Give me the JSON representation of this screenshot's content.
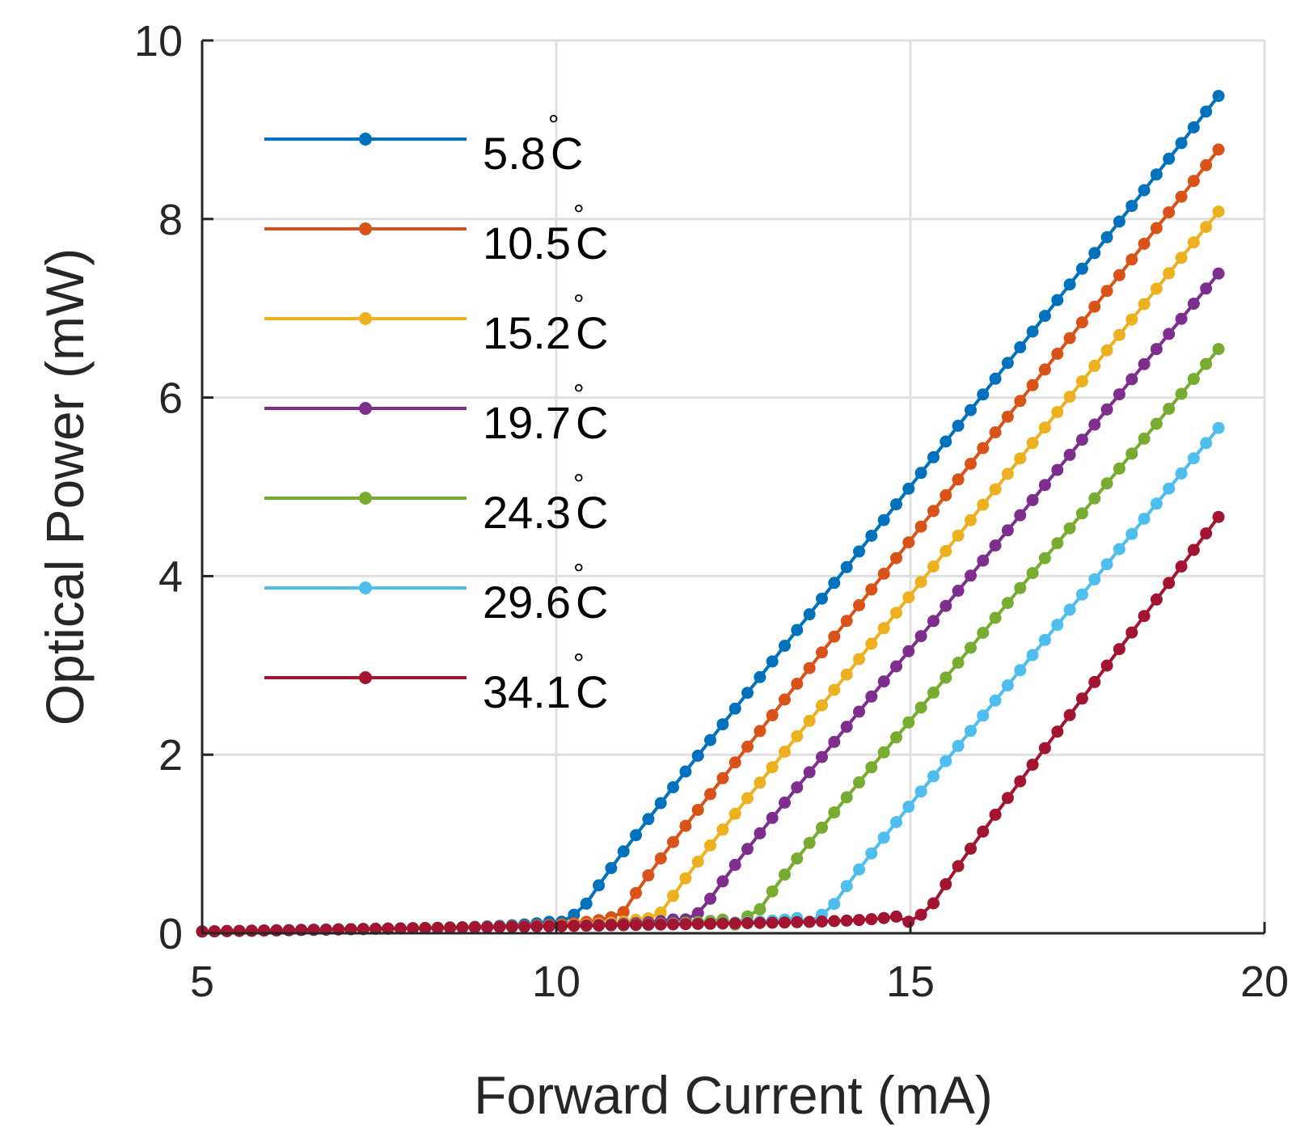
{
  "chart_data": {
    "type": "line",
    "title": "",
    "xlabel": "Forward Current (mA)",
    "ylabel": "Optical Power (mW)",
    "xlim": [
      5,
      20
    ],
    "ylim": [
      0,
      10
    ],
    "xticks": [
      "5",
      "10",
      "15",
      "20"
    ],
    "yticks": [
      "0",
      "2",
      "4",
      "6",
      "8",
      "10"
    ],
    "grid": true,
    "legend_position": "top-left",
    "x_start": 5.0,
    "x_end": 19.3,
    "x_step": 0.175,
    "slope_efficiency_mW_per_mA": 1.1,
    "series": [
      {
        "name": "5.8",
        "unit": "°C",
        "color": "#0072BD",
        "threshold_mA": 10.0,
        "end_value_mW": 9.35
      },
      {
        "name": "10.5",
        "unit": "°C",
        "color": "#D95319",
        "threshold_mA": 10.6,
        "end_value_mW": 8.75
      },
      {
        "name": "15.2",
        "unit": "°C",
        "color": "#EDB120",
        "threshold_mA": 11.15,
        "end_value_mW": 8.05
      },
      {
        "name": "19.7",
        "unit": "°C",
        "color": "#7E2F8E",
        "threshold_mA": 11.7,
        "end_value_mW": 7.35
      },
      {
        "name": "24.3",
        "unit": "°C",
        "color": "#77AC30",
        "threshold_mA": 12.5,
        "end_value_mW": 6.5
      },
      {
        "name": "29.6",
        "unit": "°C",
        "color": "#4DBEEE",
        "threshold_mA": 13.5,
        "end_value_mW": 5.62
      },
      {
        "name": "34.1",
        "unit": "°C",
        "color": "#A2142F",
        "threshold_mA": 14.9,
        "end_value_mW": 4.65
      }
    ]
  }
}
